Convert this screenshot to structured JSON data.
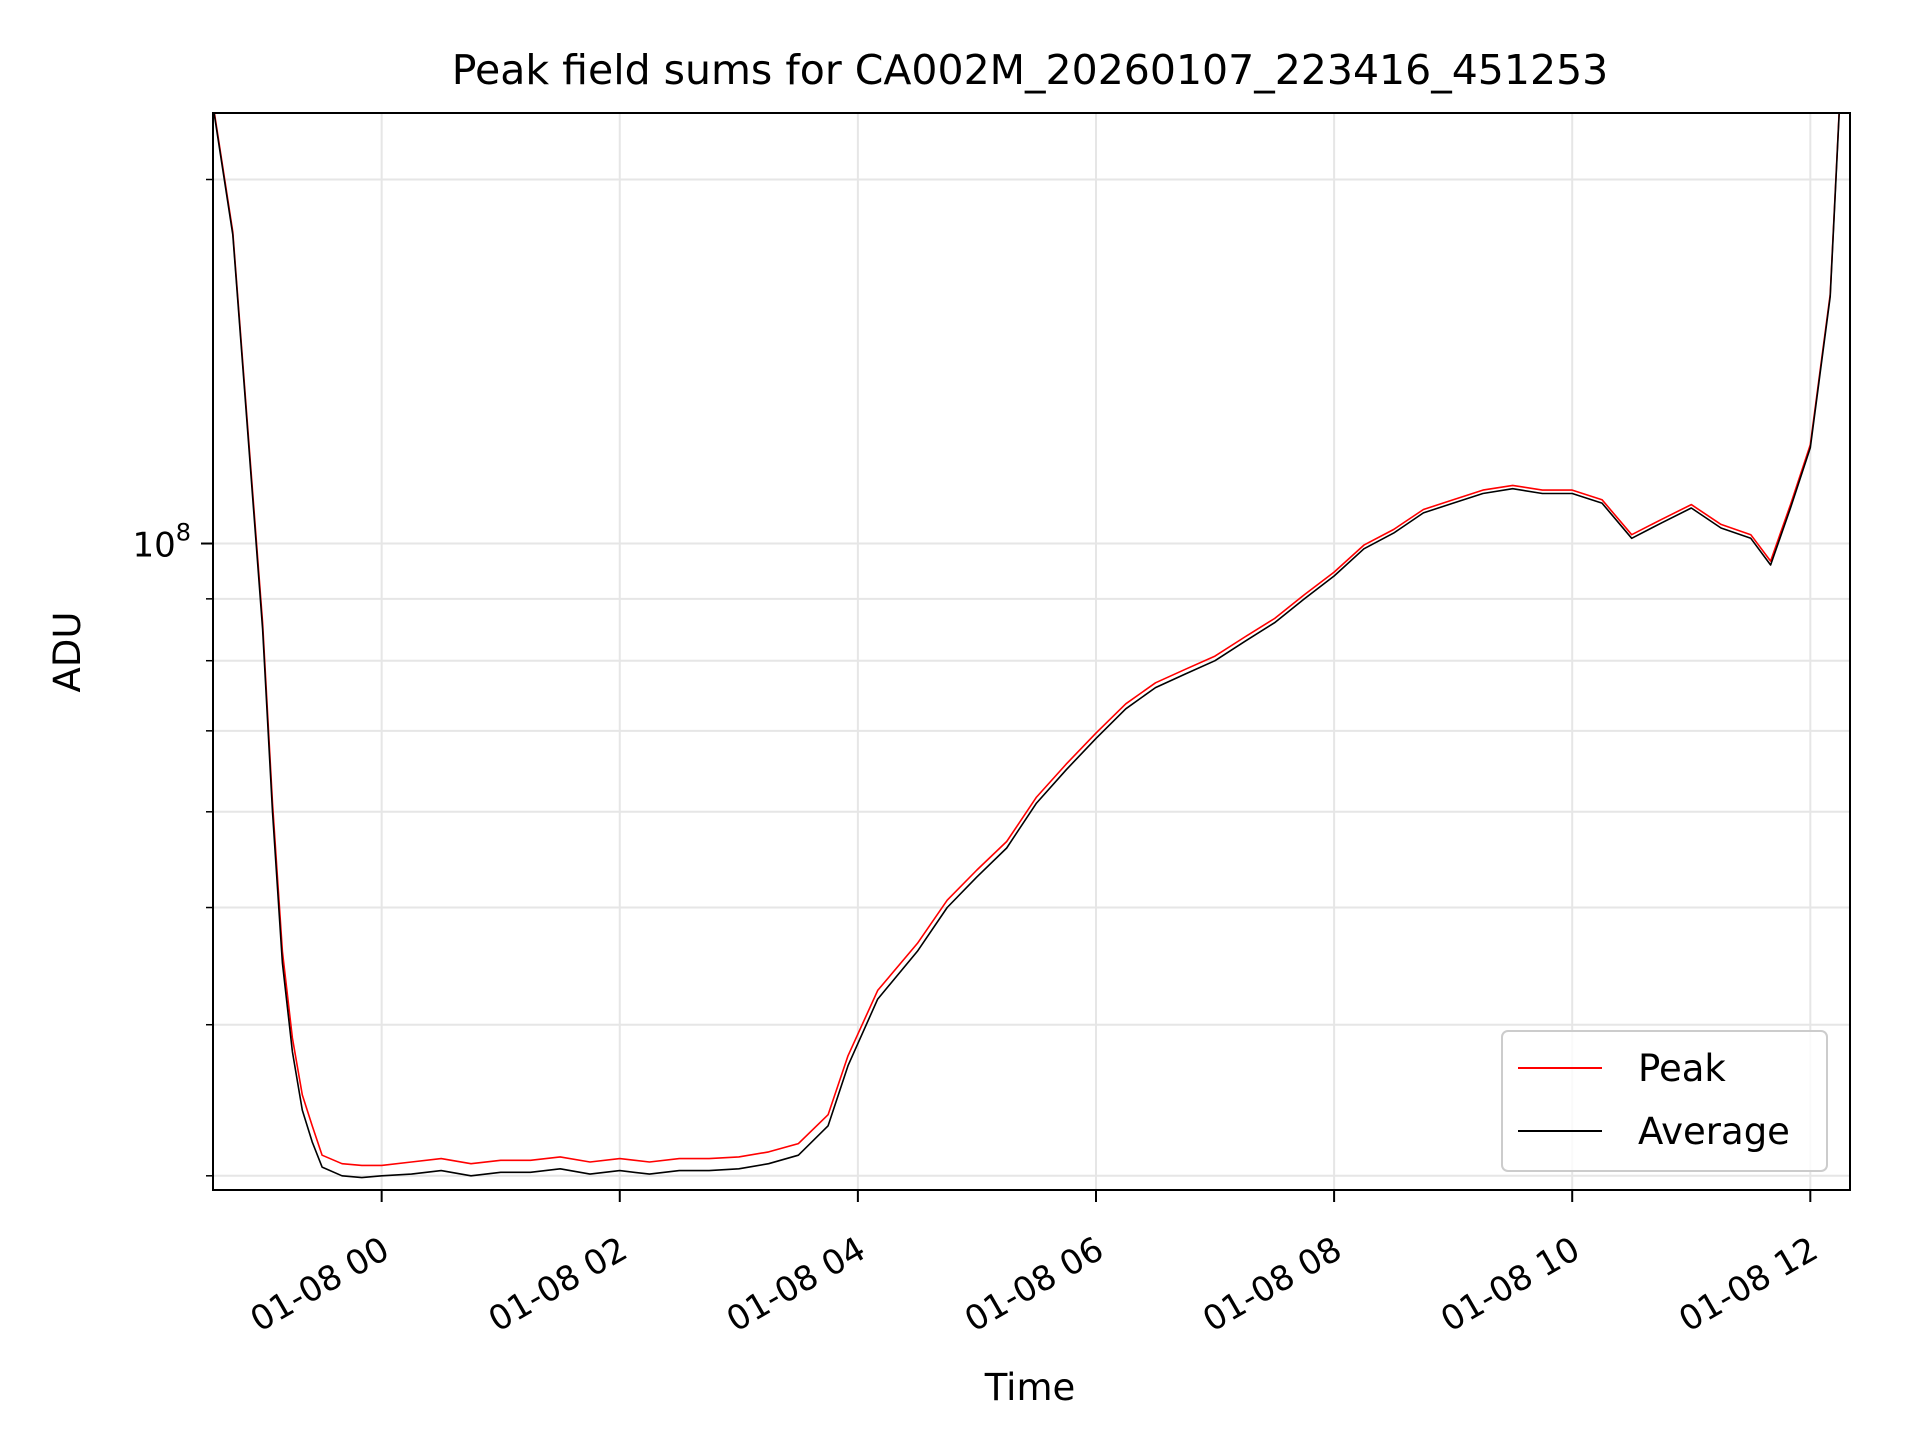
{
  "chart_data": {
    "type": "line",
    "title": "Peak field sums for CA002M_20260107_223416_451253",
    "xlabel": "Time",
    "ylabel": "ADU",
    "y_scale": "log",
    "xlim": [
      "2026-01-07T22:35",
      "2026-01-08T12:20"
    ],
    "ylim": [
      29200000,
      227000000
    ],
    "x_ticks": [
      {
        "t": "2026-01-08T00:00",
        "label": "01-08 00"
      },
      {
        "t": "2026-01-08T02:00",
        "label": "01-08 02"
      },
      {
        "t": "2026-01-08T04:00",
        "label": "01-08 04"
      },
      {
        "t": "2026-01-08T06:00",
        "label": "01-08 06"
      },
      {
        "t": "2026-01-08T08:00",
        "label": "01-08 08"
      },
      {
        "t": "2026-01-08T10:00",
        "label": "01-08 10"
      },
      {
        "t": "2026-01-08T12:00",
        "label": "01-08 12"
      }
    ],
    "y_ticks_major": [
      {
        "value": 100000000,
        "base": "10",
        "exp": "8"
      }
    ],
    "y_ticks_minor": [
      30000000,
      40000000,
      50000000,
      60000000,
      70000000,
      80000000,
      90000000,
      200000000
    ],
    "grid": true,
    "legend_position": "lower-right",
    "series": [
      {
        "name": "Peak",
        "color": "#ff0000",
        "key": "peak"
      },
      {
        "name": "Average",
        "color": "#000000",
        "key": "average"
      }
    ],
    "x": [
      "2026-01-07T22:35",
      "2026-01-07T22:45",
      "2026-01-07T22:50",
      "2026-01-07T23:00",
      "2026-01-07T23:05",
      "2026-01-07T23:10",
      "2026-01-07T23:15",
      "2026-01-07T23:20",
      "2026-01-07T23:25",
      "2026-01-07T23:30",
      "2026-01-07T23:40",
      "2026-01-07T23:50",
      "2026-01-08T00:00",
      "2026-01-08T00:15",
      "2026-01-08T00:30",
      "2026-01-08T00:45",
      "2026-01-08T01:00",
      "2026-01-08T01:15",
      "2026-01-08T01:30",
      "2026-01-08T01:45",
      "2026-01-08T02:00",
      "2026-01-08T02:15",
      "2026-01-08T02:30",
      "2026-01-08T02:45",
      "2026-01-08T03:00",
      "2026-01-08T03:15",
      "2026-01-08T03:30",
      "2026-01-08T03:45",
      "2026-01-08T03:55",
      "2026-01-08T04:10",
      "2026-01-08T04:30",
      "2026-01-08T04:45",
      "2026-01-08T05:00",
      "2026-01-08T05:15",
      "2026-01-08T05:30",
      "2026-01-08T05:45",
      "2026-01-08T06:00",
      "2026-01-08T06:15",
      "2026-01-08T06:30",
      "2026-01-08T06:45",
      "2026-01-08T07:00",
      "2026-01-08T07:15",
      "2026-01-08T07:30",
      "2026-01-08T07:45",
      "2026-01-08T08:00",
      "2026-01-08T08:15",
      "2026-01-08T08:30",
      "2026-01-08T08:45",
      "2026-01-08T09:00",
      "2026-01-08T09:15",
      "2026-01-08T09:30",
      "2026-01-08T09:45",
      "2026-01-08T10:00",
      "2026-01-08T10:15",
      "2026-01-08T10:30",
      "2026-01-08T10:45",
      "2026-01-08T11:00",
      "2026-01-08T11:15",
      "2026-01-08T11:30",
      "2026-01-08T11:40",
      "2026-01-08T11:50",
      "2026-01-08T12:00",
      "2026-01-08T12:10",
      "2026-01-08T12:15"
    ],
    "average": [
      230000000,
      180000000,
      140000000,
      85000000,
      60000000,
      45000000,
      38000000,
      34000000,
      32000000,
      30500000,
      30000000,
      29900000,
      30000000,
      30100000,
      30300000,
      30000000,
      30200000,
      30200000,
      30400000,
      30100000,
      30300000,
      30100000,
      30300000,
      30300000,
      30400000,
      30700000,
      31200000,
      33000000,
      37000000,
      42000000,
      46000000,
      50000000,
      53000000,
      56000000,
      61000000,
      65000000,
      69000000,
      73000000,
      76000000,
      78000000,
      80000000,
      83000000,
      86000000,
      90000000,
      94000000,
      99000000,
      102000000,
      106000000,
      108000000,
      110000000,
      111000000,
      110000000,
      110000000,
      108000000,
      101000000,
      104000000,
      107000000,
      103000000,
      101000000,
      96000000,
      107000000,
      120000000,
      160000000,
      235000000
    ],
    "peak": [
      231000000,
      181000000,
      141000000,
      86000000,
      61000000,
      46000000,
      39000000,
      35000000,
      33000000,
      31200000,
      30700000,
      30600000,
      30600000,
      30800000,
      31000000,
      30700000,
      30900000,
      30900000,
      31100000,
      30800000,
      31000000,
      30800000,
      31000000,
      31000000,
      31100000,
      31400000,
      31900000,
      33700000,
      37700000,
      42700000,
      46700000,
      50700000,
      53700000,
      56700000,
      61700000,
      65700000,
      69700000,
      73700000,
      76700000,
      78700000,
      80700000,
      83700000,
      86700000,
      90700000,
      94700000,
      99700000,
      102700000,
      106700000,
      108700000,
      110700000,
      111700000,
      110700000,
      110700000,
      108700000,
      101700000,
      104700000,
      107700000,
      103700000,
      101700000,
      96700000,
      107700000,
      120700000,
      160700000,
      236000000
    ]
  }
}
